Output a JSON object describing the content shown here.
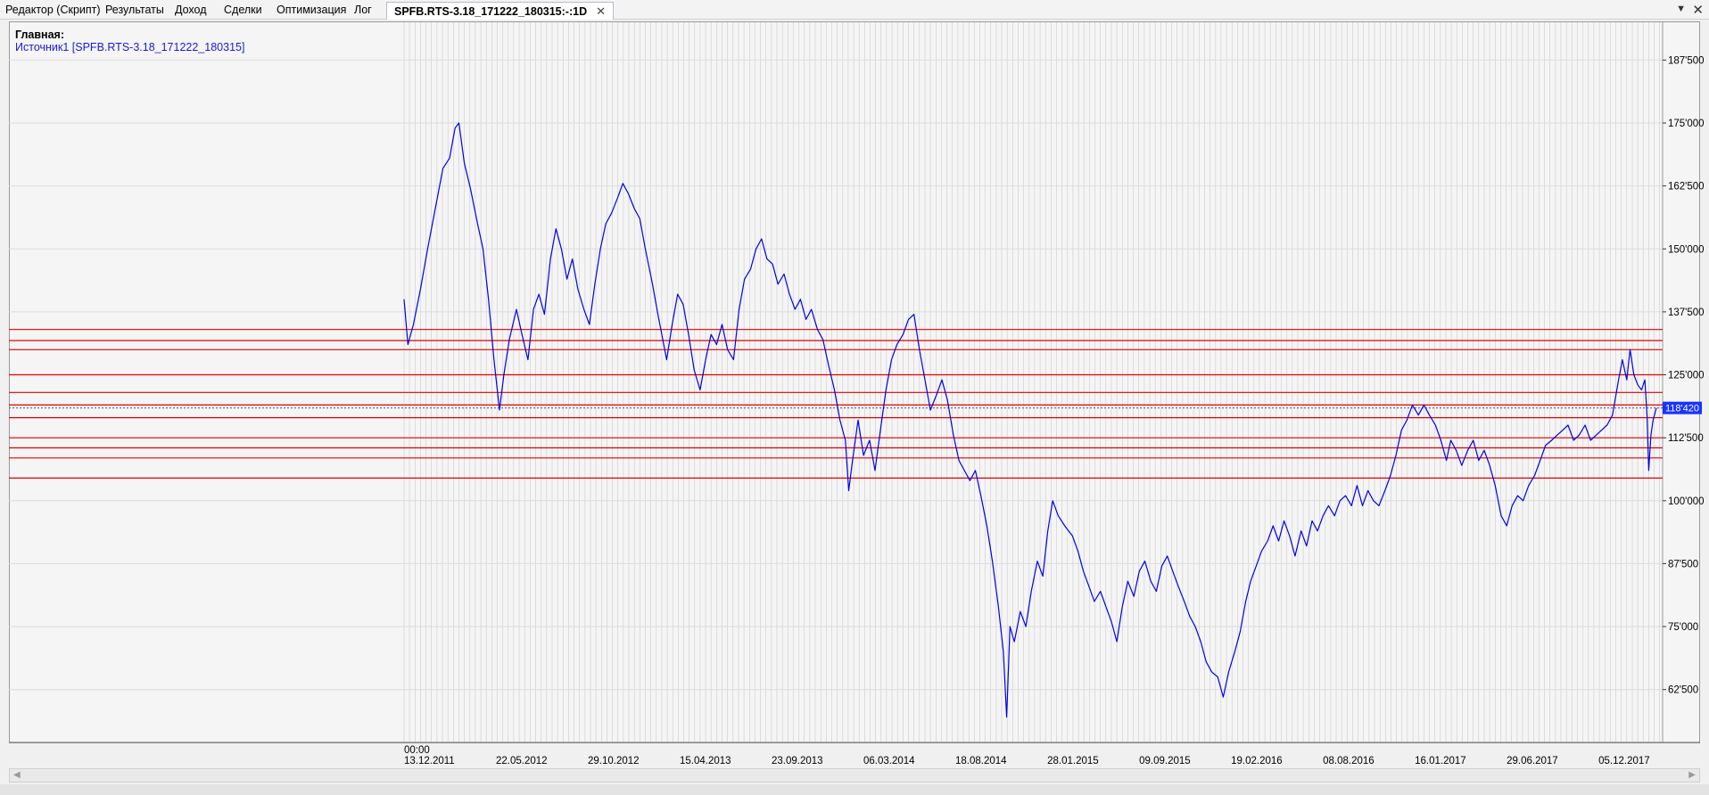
{
  "tabs": [
    {
      "label": "Редактор (Скрипт)",
      "active": false
    },
    {
      "label": "Результаты",
      "active": false
    },
    {
      "label": "Доход",
      "active": false
    },
    {
      "label": "Сделки",
      "active": false
    },
    {
      "label": "Оптимизация",
      "active": false
    },
    {
      "label": "Лог",
      "active": false
    },
    {
      "label": "SPFB.RTS-3.18_171222_180315:-:1D",
      "active": true
    }
  ],
  "tab_close_glyph": "✕",
  "tab_menu_glyph": "▼",
  "window_close_glyph": "✕",
  "legend": {
    "title": "Главная:",
    "source": "Источник1 [SPFB.RTS-3.18_171222_180315]"
  },
  "colors": {
    "series": "#0000e6",
    "levels": "#e60000",
    "price_tag": "#1a33ff",
    "grid": "#cccccc",
    "background": "#f5f5f5"
  },
  "chart_data": {
    "type": "line",
    "y_axis_position": "right",
    "ylim": [
      52000,
      195000
    ],
    "y_ticks": [
      62500,
      75000,
      87500,
      100000,
      112500,
      125000,
      137500,
      150000,
      162500,
      175000,
      187500
    ],
    "y_tick_labels": [
      "62'500",
      "75'000",
      "87'500",
      "100'000",
      "112'500",
      "125'000",
      "137'500",
      "150'000",
      "162'500",
      "175'000",
      "187'500"
    ],
    "x_time_label": "00:00",
    "x_tick_labels": [
      "13.12.2011",
      "22.05.2012",
      "29.10.2012",
      "15.04.2013",
      "23.09.2013",
      "06.03.2014",
      "18.08.2014",
      "28.01.2015",
      "09.09.2015",
      "19.02.2016",
      "08.08.2016",
      "16.01.2017",
      "29.06.2017",
      "05.12.2017"
    ],
    "x_start": "2011-12-13",
    "x_end": "2018-03-15",
    "grid": true,
    "current_price": 118420,
    "current_price_label": "118'420",
    "horizontal_levels": [
      104500,
      108500,
      110500,
      112500,
      116500,
      119000,
      121500,
      125000,
      130000,
      131800,
      134000
    ],
    "series": [
      {
        "values": [
          [
            "2011-12-13",
            140000
          ],
          [
            "2011-12-20",
            131000
          ],
          [
            "2011-12-30",
            135000
          ],
          [
            "2012-01-12",
            142000
          ],
          [
            "2012-01-25",
            150000
          ],
          [
            "2012-02-08",
            158000
          ],
          [
            "2012-02-22",
            166000
          ],
          [
            "2012-03-05",
            168000
          ],
          [
            "2012-03-15",
            174000
          ],
          [
            "2012-03-22",
            175000
          ],
          [
            "2012-04-01",
            167000
          ],
          [
            "2012-04-12",
            162000
          ],
          [
            "2012-04-25",
            155000
          ],
          [
            "2012-05-05",
            150000
          ],
          [
            "2012-05-15",
            140000
          ],
          [
            "2012-05-25",
            128000
          ],
          [
            "2012-06-04",
            118000
          ],
          [
            "2012-06-12",
            125000
          ],
          [
            "2012-06-22",
            132000
          ],
          [
            "2012-07-05",
            138000
          ],
          [
            "2012-07-15",
            133000
          ],
          [
            "2012-07-26",
            128000
          ],
          [
            "2012-08-05",
            138000
          ],
          [
            "2012-08-15",
            141000
          ],
          [
            "2012-08-25",
            137000
          ],
          [
            "2012-09-05",
            148000
          ],
          [
            "2012-09-15",
            154000
          ],
          [
            "2012-09-25",
            150000
          ],
          [
            "2012-10-05",
            144000
          ],
          [
            "2012-10-15",
            148000
          ],
          [
            "2012-10-25",
            142000
          ],
          [
            "2012-11-05",
            138000
          ],
          [
            "2012-11-15",
            135000
          ],
          [
            "2012-11-25",
            143000
          ],
          [
            "2012-12-05",
            150000
          ],
          [
            "2012-12-15",
            155000
          ],
          [
            "2012-12-25",
            157000
          ],
          [
            "2013-01-05",
            160000
          ],
          [
            "2013-01-15",
            163000
          ],
          [
            "2013-01-25",
            161000
          ],
          [
            "2013-02-05",
            158000
          ],
          [
            "2013-02-15",
            156000
          ],
          [
            "2013-02-25",
            150000
          ],
          [
            "2013-03-10",
            143000
          ],
          [
            "2013-03-20",
            137000
          ],
          [
            "2013-04-05",
            128000
          ],
          [
            "2013-04-15",
            135000
          ],
          [
            "2013-04-25",
            141000
          ],
          [
            "2013-05-05",
            139000
          ],
          [
            "2013-05-15",
            133000
          ],
          [
            "2013-05-25",
            126000
          ],
          [
            "2013-06-05",
            122000
          ],
          [
            "2013-06-15",
            128000
          ],
          [
            "2013-06-25",
            133000
          ],
          [
            "2013-07-05",
            131000
          ],
          [
            "2013-07-15",
            135000
          ],
          [
            "2013-07-25",
            130000
          ],
          [
            "2013-08-05",
            128000
          ],
          [
            "2013-08-15",
            138000
          ],
          [
            "2013-08-25",
            144000
          ],
          [
            "2013-09-05",
            146000
          ],
          [
            "2013-09-15",
            150000
          ],
          [
            "2013-09-25",
            152000
          ],
          [
            "2013-10-05",
            148000
          ],
          [
            "2013-10-15",
            147000
          ],
          [
            "2013-10-25",
            143000
          ],
          [
            "2013-11-05",
            145000
          ],
          [
            "2013-11-15",
            141000
          ],
          [
            "2013-11-25",
            138000
          ],
          [
            "2013-12-05",
            140000
          ],
          [
            "2013-12-15",
            136000
          ],
          [
            "2013-12-25",
            138000
          ],
          [
            "2014-01-05",
            134000
          ],
          [
            "2014-01-15",
            132000
          ],
          [
            "2014-01-25",
            127000
          ],
          [
            "2014-02-05",
            122000
          ],
          [
            "2014-02-15",
            116000
          ],
          [
            "2014-02-25",
            112000
          ],
          [
            "2014-03-03",
            102000
          ],
          [
            "2014-03-10",
            108000
          ],
          [
            "2014-03-20",
            116000
          ],
          [
            "2014-03-30",
            109000
          ],
          [
            "2014-04-10",
            112000
          ],
          [
            "2014-04-20",
            106000
          ],
          [
            "2014-05-01",
            115000
          ],
          [
            "2014-05-10",
            122000
          ],
          [
            "2014-05-20",
            128000
          ],
          [
            "2014-05-30",
            131000
          ],
          [
            "2014-06-10",
            133000
          ],
          [
            "2014-06-20",
            136000
          ],
          [
            "2014-06-30",
            137000
          ],
          [
            "2014-07-10",
            130000
          ],
          [
            "2014-07-20",
            124000
          ],
          [
            "2014-07-30",
            118000
          ],
          [
            "2014-08-10",
            121000
          ],
          [
            "2014-08-20",
            124000
          ],
          [
            "2014-08-30",
            120000
          ],
          [
            "2014-09-10",
            113000
          ],
          [
            "2014-09-20",
            108000
          ],
          [
            "2014-09-30",
            106000
          ],
          [
            "2014-10-10",
            104000
          ],
          [
            "2014-10-20",
            106000
          ],
          [
            "2014-10-30",
            101000
          ],
          [
            "2014-11-10",
            95000
          ],
          [
            "2014-11-20",
            88000
          ],
          [
            "2014-12-01",
            79000
          ],
          [
            "2014-12-10",
            70000
          ],
          [
            "2014-12-16",
            57000
          ],
          [
            "2014-12-22",
            75000
          ],
          [
            "2014-12-30",
            72000
          ],
          [
            "2015-01-10",
            78000
          ],
          [
            "2015-01-20",
            75000
          ],
          [
            "2015-01-30",
            82000
          ],
          [
            "2015-02-10",
            88000
          ],
          [
            "2015-02-20",
            85000
          ],
          [
            "2015-03-01",
            94000
          ],
          [
            "2015-03-10",
            100000
          ],
          [
            "2015-03-20",
            97000
          ],
          [
            "2015-04-01",
            95000
          ],
          [
            "2015-04-15",
            93000
          ],
          [
            "2015-04-25",
            90000
          ],
          [
            "2015-05-05",
            86000
          ],
          [
            "2015-05-15",
            83000
          ],
          [
            "2015-05-25",
            80000
          ],
          [
            "2015-06-05",
            82000
          ],
          [
            "2015-06-15",
            79000
          ],
          [
            "2015-06-25",
            76000
          ],
          [
            "2015-07-05",
            72000
          ],
          [
            "2015-07-15",
            79000
          ],
          [
            "2015-07-25",
            84000
          ],
          [
            "2015-08-05",
            81000
          ],
          [
            "2015-08-15",
            86000
          ],
          [
            "2015-08-25",
            88000
          ],
          [
            "2015-09-05",
            84000
          ],
          [
            "2015-09-15",
            82000
          ],
          [
            "2015-09-25",
            87000
          ],
          [
            "2015-10-05",
            89000
          ],
          [
            "2015-10-15",
            86000
          ],
          [
            "2015-10-25",
            83000
          ],
          [
            "2015-11-05",
            80000
          ],
          [
            "2015-11-15",
            77000
          ],
          [
            "2015-11-25",
            75000
          ],
          [
            "2015-12-05",
            72000
          ],
          [
            "2015-12-15",
            68000
          ],
          [
            "2015-12-25",
            66000
          ],
          [
            "2016-01-05",
            65000
          ],
          [
            "2016-01-15",
            61000
          ],
          [
            "2016-01-25",
            66000
          ],
          [
            "2016-02-05",
            70000
          ],
          [
            "2016-02-15",
            74000
          ],
          [
            "2016-02-25",
            80000
          ],
          [
            "2016-03-05",
            84000
          ],
          [
            "2016-03-15",
            87000
          ],
          [
            "2016-03-25",
            90000
          ],
          [
            "2016-04-05",
            92000
          ],
          [
            "2016-04-15",
            95000
          ],
          [
            "2016-04-25",
            92000
          ],
          [
            "2016-05-05",
            96000
          ],
          [
            "2016-05-15",
            93000
          ],
          [
            "2016-05-25",
            89000
          ],
          [
            "2016-06-05",
            94000
          ],
          [
            "2016-06-15",
            91000
          ],
          [
            "2016-06-25",
            96000
          ],
          [
            "2016-07-05",
            94000
          ],
          [
            "2016-07-15",
            97000
          ],
          [
            "2016-07-25",
            99000
          ],
          [
            "2016-08-05",
            97000
          ],
          [
            "2016-08-15",
            100000
          ],
          [
            "2016-08-25",
            101000
          ],
          [
            "2016-09-05",
            99000
          ],
          [
            "2016-09-15",
            103000
          ],
          [
            "2016-09-25",
            99000
          ],
          [
            "2016-10-05",
            102000
          ],
          [
            "2016-10-15",
            100000
          ],
          [
            "2016-10-25",
            99000
          ],
          [
            "2016-11-05",
            102000
          ],
          [
            "2016-11-15",
            105000
          ],
          [
            "2016-11-25",
            109000
          ],
          [
            "2016-12-05",
            114000
          ],
          [
            "2016-12-15",
            116000
          ],
          [
            "2016-12-25",
            119000
          ],
          [
            "2017-01-05",
            117000
          ],
          [
            "2017-01-15",
            119000
          ],
          [
            "2017-01-25",
            117000
          ],
          [
            "2017-02-05",
            115000
          ],
          [
            "2017-02-15",
            112000
          ],
          [
            "2017-02-25",
            108000
          ],
          [
            "2017-03-05",
            112000
          ],
          [
            "2017-03-15",
            110000
          ],
          [
            "2017-03-25",
            107000
          ],
          [
            "2017-04-05",
            110000
          ],
          [
            "2017-04-15",
            112000
          ],
          [
            "2017-04-25",
            108000
          ],
          [
            "2017-05-05",
            110000
          ],
          [
            "2017-05-15",
            107000
          ],
          [
            "2017-05-25",
            103000
          ],
          [
            "2017-06-05",
            97000
          ],
          [
            "2017-06-15",
            95000
          ],
          [
            "2017-06-25",
            99000
          ],
          [
            "2017-07-05",
            101000
          ],
          [
            "2017-07-15",
            100000
          ],
          [
            "2017-07-25",
            103000
          ],
          [
            "2017-08-05",
            105000
          ],
          [
            "2017-08-15",
            108000
          ],
          [
            "2017-08-25",
            111000
          ],
          [
            "2017-09-05",
            112000
          ],
          [
            "2017-09-15",
            113000
          ],
          [
            "2017-09-25",
            114000
          ],
          [
            "2017-10-05",
            115000
          ],
          [
            "2017-10-15",
            112000
          ],
          [
            "2017-10-25",
            113000
          ],
          [
            "2017-11-05",
            115000
          ],
          [
            "2017-11-15",
            112000
          ],
          [
            "2017-11-25",
            113000
          ],
          [
            "2017-12-05",
            114000
          ],
          [
            "2017-12-15",
            115000
          ],
          [
            "2017-12-25",
            117000
          ],
          [
            "2018-01-05",
            124000
          ],
          [
            "2018-01-12",
            128000
          ],
          [
            "2018-01-20",
            124000
          ],
          [
            "2018-01-26",
            130000
          ],
          [
            "2018-02-02",
            125000
          ],
          [
            "2018-02-09",
            123000
          ],
          [
            "2018-02-16",
            122000
          ],
          [
            "2018-02-22",
            124000
          ],
          [
            "2018-02-26",
            117000
          ],
          [
            "2018-03-01",
            106000
          ],
          [
            "2018-03-05",
            113000
          ],
          [
            "2018-03-09",
            116000
          ],
          [
            "2018-03-15",
            118420
          ]
        ]
      }
    ]
  }
}
